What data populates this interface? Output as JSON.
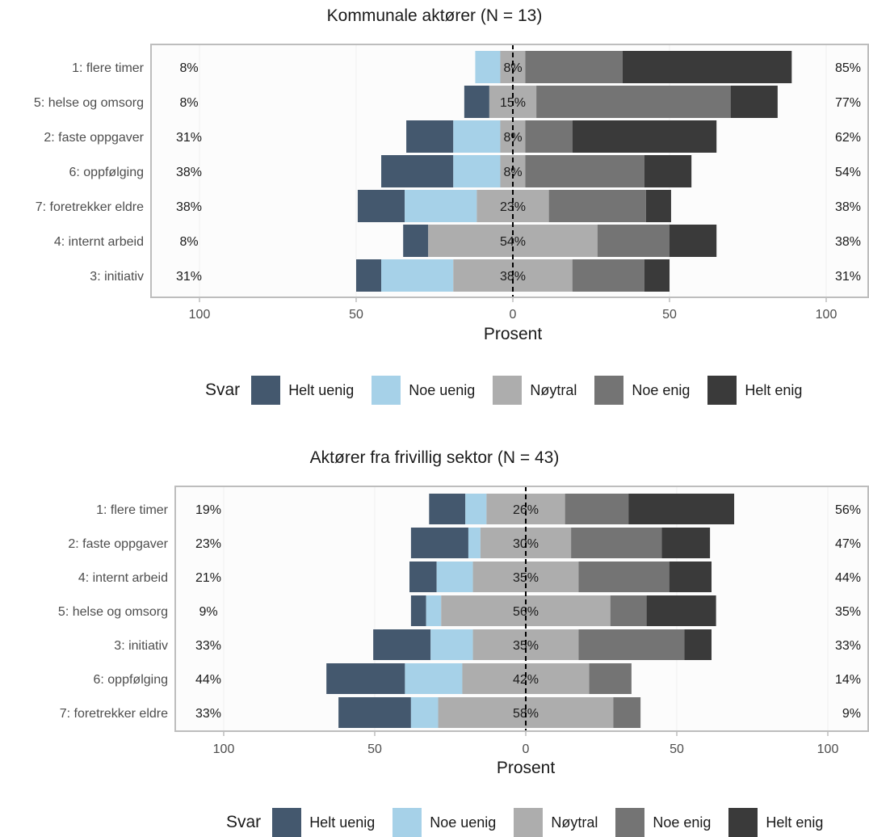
{
  "chart_data": [
    {
      "type": "bar",
      "title": "Kommunale aktører (N = 13)",
      "xlabel": "Prosent",
      "ylabel": "",
      "xlim": [
        -100,
        100
      ],
      "x_ticks": [
        -100,
        -50,
        0,
        50,
        100
      ],
      "x_tick_labels": [
        "100",
        "50",
        "0",
        "50",
        "100"
      ],
      "legend_title": "Svar",
      "legend_position": "bottom",
      "series": [
        {
          "name": "Helt uenig",
          "color": "#44586E"
        },
        {
          "name": "Noe uenig",
          "color": "#A6D1E8"
        },
        {
          "name": "Nøytral",
          "color": "#ADADAD"
        },
        {
          "name": "Noe enig",
          "color": "#747474"
        },
        {
          "name": "Helt enig",
          "color": "#3A3A3A"
        }
      ],
      "categories": [
        "1: flere timer",
        "5: helse og omsorg",
        "2: faste oppgaver",
        "6: oppfølging",
        "7: foretrekker eldre",
        "4: internt arbeid",
        "3: initiativ"
      ],
      "values": [
        [
          0,
          8,
          8,
          31,
          54
        ],
        [
          8,
          0,
          15,
          62,
          15
        ],
        [
          15,
          15,
          8,
          15,
          46
        ],
        [
          23,
          15,
          8,
          38,
          15
        ],
        [
          15,
          23,
          23,
          31,
          8
        ],
        [
          8,
          0,
          54,
          23,
          15
        ],
        [
          8,
          23,
          38,
          23,
          8
        ]
      ],
      "low_labels": [
        "8%",
        "8%",
        "31%",
        "38%",
        "38%",
        "8%",
        "31%"
      ],
      "neutral_labels": [
        "8%",
        "15%",
        "8%",
        "8%",
        "23%",
        "54%",
        "38%"
      ],
      "high_labels": [
        "85%",
        "77%",
        "62%",
        "54%",
        "38%",
        "38%",
        "31%"
      ]
    },
    {
      "type": "bar",
      "title": "Aktører fra frivillig sektor (N = 43)",
      "xlabel": "Prosent",
      "ylabel": "",
      "xlim": [
        -100,
        100
      ],
      "x_ticks": [
        -100,
        -50,
        0,
        50,
        100
      ],
      "x_tick_labels": [
        "100",
        "50",
        "0",
        "50",
        "100"
      ],
      "legend_title": "Svar",
      "legend_position": "bottom",
      "series": [
        {
          "name": "Helt uenig",
          "color": "#44586E"
        },
        {
          "name": "Noe uenig",
          "color": "#A6D1E8"
        },
        {
          "name": "Nøytral",
          "color": "#ADADAD"
        },
        {
          "name": "Noe enig",
          "color": "#747474"
        },
        {
          "name": "Helt enig",
          "color": "#3A3A3A"
        }
      ],
      "categories": [
        "1: flere timer",
        "2: faste oppgaver",
        "4: internt arbeid",
        "5: helse og omsorg",
        "3: initiativ",
        "6: oppfølging",
        "7: foretrekker eldre"
      ],
      "values": [
        [
          12,
          7,
          26,
          21,
          35
        ],
        [
          19,
          4,
          30,
          30,
          16
        ],
        [
          9,
          12,
          35,
          30,
          14
        ],
        [
          5,
          5,
          56,
          12,
          23
        ],
        [
          19,
          14,
          35,
          35,
          9
        ],
        [
          26,
          19,
          42,
          14,
          0
        ],
        [
          24,
          9,
          58,
          9,
          0
        ]
      ],
      "low_labels": [
        "19%",
        "23%",
        "21%",
        "9%",
        "33%",
        "44%",
        "33%"
      ],
      "neutral_labels": [
        "26%",
        "30%",
        "35%",
        "56%",
        "35%",
        "42%",
        "58%"
      ],
      "high_labels": [
        "56%",
        "47%",
        "44%",
        "35%",
        "33%",
        "14%",
        "9%"
      ]
    }
  ]
}
